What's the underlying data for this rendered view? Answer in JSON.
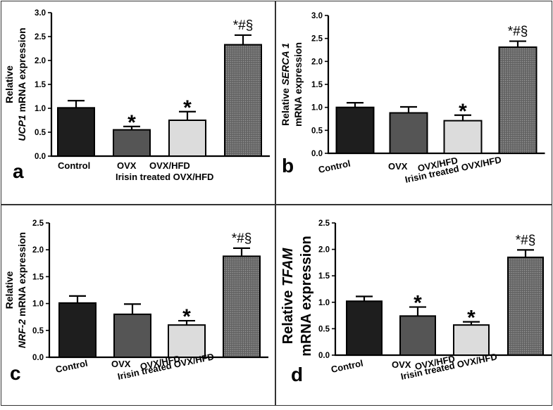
{
  "figure": {
    "colors": {
      "control": "#1e1e1e",
      "ovx": "#555555",
      "ovx_hfd": "#dcdcdc",
      "irisin": "#6f6f6f",
      "axis": "#000000",
      "border": "#333333"
    }
  },
  "chart_data": [
    {
      "panel_label": "a",
      "type": "bar",
      "ylabel_line1": "Relative",
      "ylabel_line2_gene": "UCP1",
      "ylabel_line2_rest": " mRNA expression",
      "ylim": [
        0,
        3.0
      ],
      "yticks": [
        "0.0",
        "0.5",
        "1.0",
        "1.5",
        "2.0",
        "2.5",
        "3.0"
      ],
      "categories": [
        "Control",
        "OVX",
        "OVX/HFD",
        "Irisin treated OVX/HFD"
      ],
      "values": [
        1.01,
        0.55,
        0.75,
        2.33
      ],
      "errors": [
        0.15,
        0.07,
        0.18,
        0.2
      ],
      "annotations": [
        "",
        "*",
        "*",
        "*#§"
      ],
      "grid": false,
      "legend": "none"
    },
    {
      "panel_label": "b",
      "type": "bar",
      "ylabel_line1_prefix": "Relative ",
      "ylabel_line1_gene": "SERCA 1",
      "ylabel_line2": "mRNA expression",
      "ylim": [
        0,
        3.0
      ],
      "yticks": [
        "0.0",
        "0.5",
        "1.0",
        "1.5",
        "2.0",
        "2.5",
        "3.0"
      ],
      "categories": [
        "Control",
        "OVX",
        "OVX/HFD",
        "Irisin treated OVX/HFD"
      ],
      "values": [
        1.0,
        0.88,
        0.71,
        2.31
      ],
      "errors": [
        0.1,
        0.13,
        0.12,
        0.13
      ],
      "annotations": [
        "",
        "",
        "*",
        "*#§"
      ],
      "grid": false,
      "legend": "none"
    },
    {
      "panel_label": "c",
      "type": "bar",
      "ylabel_line1": "Relative",
      "ylabel_line2_gene": "NRF-2",
      "ylabel_line2_rest": " mRNA expression",
      "ylim": [
        0,
        2.5
      ],
      "yticks": [
        "0.0",
        "0.5",
        "1.0",
        "1.5",
        "2.0",
        "2.5"
      ],
      "categories": [
        "Control",
        "OVX",
        "OVX/HFD",
        "Irisin treated OVX/HFD"
      ],
      "values": [
        1.01,
        0.8,
        0.6,
        1.88
      ],
      "errors": [
        0.13,
        0.19,
        0.08,
        0.15
      ],
      "annotations": [
        "",
        "",
        "*",
        "*#§"
      ],
      "grid": false,
      "legend": "none"
    },
    {
      "panel_label": "d",
      "type": "bar",
      "ylabel_line1_prefix": "Relative  ",
      "ylabel_line1_gene": "TFAM",
      "ylabel_line2": "mRNA expression",
      "ylim": [
        0,
        2.5
      ],
      "yticks": [
        "0.0",
        "0.5",
        "1.0",
        "1.5",
        "2.0",
        "2.5"
      ],
      "categories": [
        "Control",
        "OVX",
        "OVX/HFD",
        "Irisin treated OVX/HFD"
      ],
      "values": [
        1.02,
        0.74,
        0.57,
        1.85
      ],
      "errors": [
        0.09,
        0.17,
        0.06,
        0.14
      ],
      "annotations": [
        "",
        "*",
        "*",
        "*#§"
      ],
      "grid": false,
      "legend": "none"
    }
  ]
}
